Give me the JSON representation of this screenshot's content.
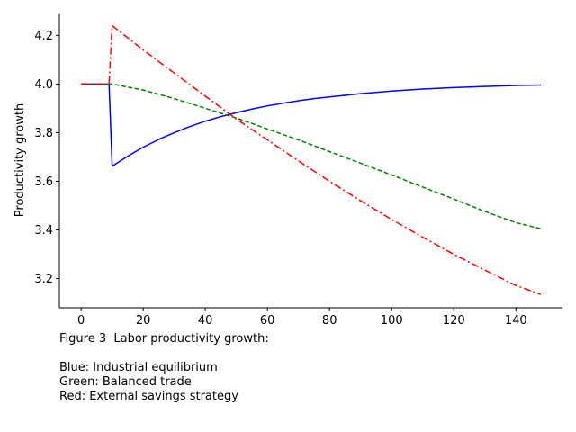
{
  "chart_data": {
    "type": "line",
    "title": "",
    "xlabel": "",
    "ylabel": "Productivity growth",
    "xlim": [
      -7,
      155
    ],
    "ylim": [
      3.08,
      4.29
    ],
    "xticks": [
      0,
      20,
      40,
      60,
      80,
      100,
      120,
      140
    ],
    "yticks": [
      3.2,
      3.4,
      3.6,
      3.8,
      4.0,
      4.2
    ],
    "grid": false,
    "legend": "none",
    "series": [
      {
        "color": "#0000ff",
        "style": "solid",
        "x": [
          0,
          9,
          10,
          15,
          20,
          25,
          30,
          35,
          40,
          45,
          50,
          55,
          60,
          65,
          70,
          75,
          80,
          90,
          100,
          110,
          120,
          130,
          140,
          148
        ],
        "values": [
          4.0,
          4.0,
          3.662,
          3.703,
          3.74,
          3.772,
          3.8,
          3.825,
          3.847,
          3.866,
          3.882,
          3.897,
          3.91,
          3.921,
          3.931,
          3.94,
          3.947,
          3.96,
          3.971,
          3.979,
          3.985,
          3.99,
          3.994,
          3.996
        ]
      },
      {
        "color": "#008000",
        "style": "dashed",
        "x": [
          0,
          10,
          20,
          30,
          40,
          50,
          60,
          70,
          80,
          90,
          100,
          110,
          120,
          130,
          140,
          148
        ],
        "values": [
          4.0,
          4.0,
          3.975,
          3.94,
          3.9,
          3.86,
          3.815,
          3.77,
          3.722,
          3.674,
          3.626,
          3.576,
          3.527,
          3.476,
          3.43,
          3.405
        ]
      },
      {
        "color": "#ff0000",
        "style": "dashdot",
        "x": [
          0,
          9,
          10,
          20,
          30,
          40,
          50,
          60,
          70,
          80,
          90,
          100,
          110,
          120,
          130,
          140,
          148
        ],
        "values": [
          4.0,
          4.0,
          4.24,
          4.14,
          4.045,
          3.95,
          3.856,
          3.77,
          3.684,
          3.6,
          3.52,
          3.443,
          3.37,
          3.3,
          3.235,
          3.172,
          3.135
        ]
      }
    ]
  },
  "caption": {
    "line1": "Figure 3  Labor productivity growth:",
    "line2": "Blue: Industrial equilibrium",
    "line3": "Green: Balanced trade",
    "line4": "Red: External savings strategy"
  }
}
